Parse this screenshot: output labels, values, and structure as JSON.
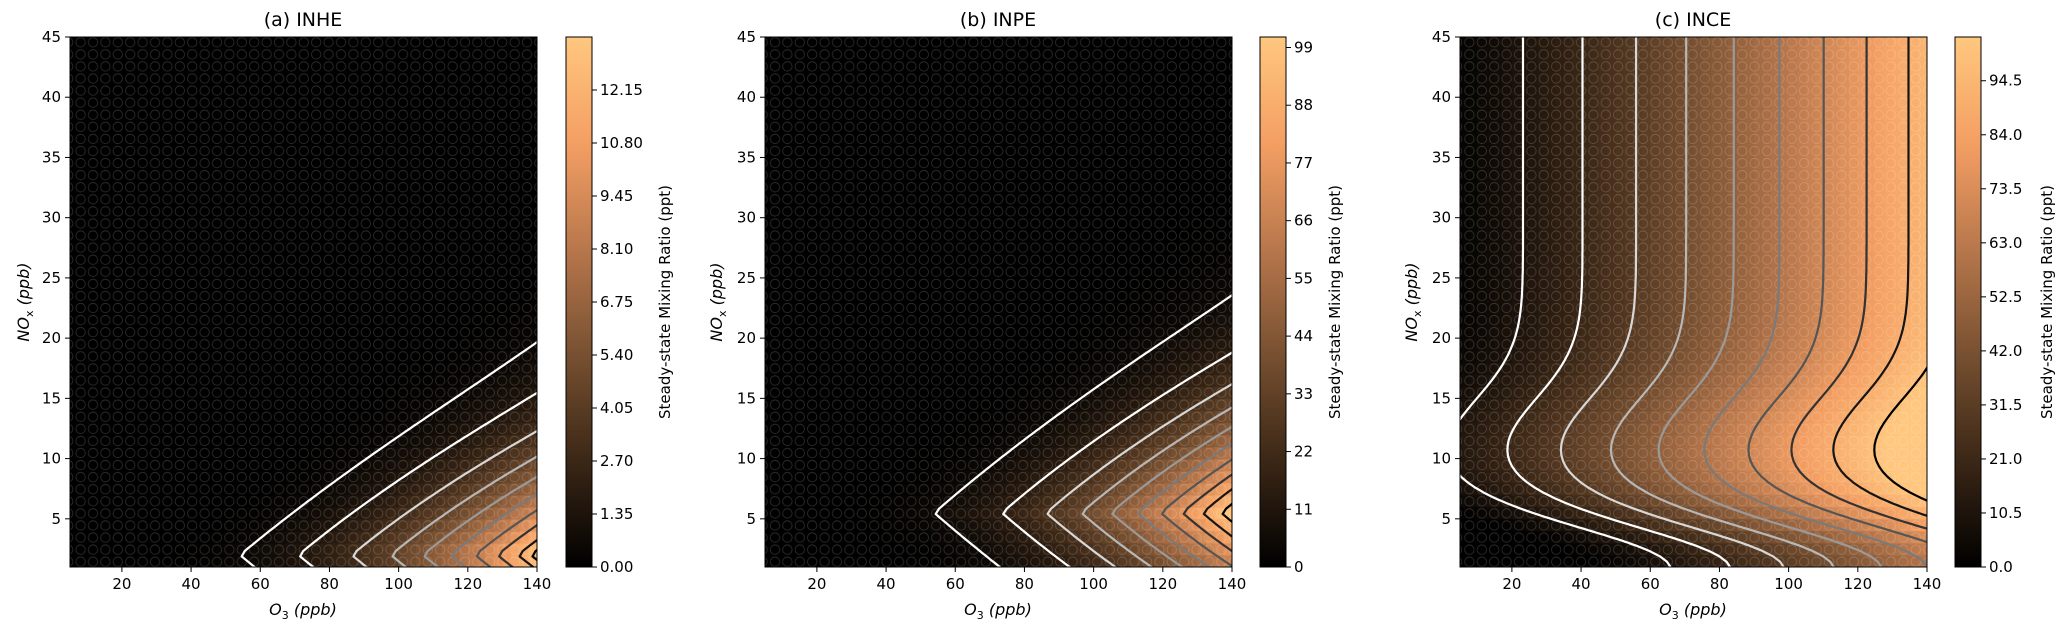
{
  "chart_data": [
    {
      "type": "heatmap",
      "title": "(a) INHE",
      "xlabel": "O3 (ppb)",
      "ylabel": "NOx (ppb)",
      "xlim": [
        5,
        140
      ],
      "ylim": [
        1,
        45
      ],
      "xticks": [
        "20",
        "40",
        "60",
        "80",
        "100",
        "120",
        "140"
      ],
      "yticks": [
        "5",
        "10",
        "15",
        "20",
        "25",
        "30",
        "35",
        "40",
        "45"
      ],
      "colorbar": {
        "label": "Steady-state Mixing Ratio (ppt)",
        "range": [
          0,
          13.5
        ],
        "ticks": [
          "0.00",
          "1.35",
          "2.70",
          "4.05",
          "5.40",
          "6.75",
          "8.10",
          "9.45",
          "10.80",
          "12.15"
        ]
      },
      "contour_levels": [
        0.5,
        1.5,
        3.0,
        4.5,
        6.0,
        7.5,
        9.0,
        10.5,
        12.0,
        13.0
      ],
      "contour_colors": [
        "#ffffff",
        "#ffffff",
        "#d8d8d8",
        "#b8b8b8",
        "#9a9a9a",
        "#7a7a7a",
        "#555555",
        "#333333",
        "#151515",
        "#000000"
      ]
    },
    {
      "type": "heatmap",
      "title": "(b) INPE",
      "xlabel": "O3 (ppb)",
      "ylabel": "NOx (ppb)",
      "xlim": [
        5,
        140
      ],
      "ylim": [
        1,
        45
      ],
      "xticks": [
        "20",
        "40",
        "60",
        "80",
        "100",
        "120",
        "140"
      ],
      "yticks": [
        "5",
        "10",
        "15",
        "20",
        "25",
        "30",
        "35",
        "40",
        "45"
      ],
      "colorbar": {
        "label": "Steady-state Mixing Ratio (ppt)",
        "range": [
          0,
          101
        ],
        "ticks": [
          "0",
          "11",
          "22",
          "33",
          "44",
          "55",
          "66",
          "77",
          "88",
          "99"
        ]
      },
      "contour_levels": [
        5,
        15,
        25,
        35,
        45,
        55,
        65,
        75,
        85,
        95
      ],
      "contour_colors": [
        "#ffffff",
        "#ffffff",
        "#d8d8d8",
        "#b8b8b8",
        "#9a9a9a",
        "#7a7a7a",
        "#555555",
        "#333333",
        "#151515",
        "#000000"
      ]
    },
    {
      "type": "heatmap",
      "title": "(c) INCE",
      "xlabel": "O3 (ppb)",
      "ylabel": "NOx (ppb)",
      "xlim": [
        5,
        140
      ],
      "ylim": [
        1,
        45
      ],
      "xticks": [
        "20",
        "40",
        "60",
        "80",
        "100",
        "120",
        "140"
      ],
      "yticks": [
        "5",
        "10",
        "15",
        "20",
        "25",
        "30",
        "35",
        "40",
        "45"
      ],
      "colorbar": {
        "label": "Steady-state Mixing Ratio (ppt)",
        "range": [
          0,
          103
        ],
        "ticks": [
          "0.0",
          "10.5",
          "21.0",
          "31.5",
          "42.0",
          "52.5",
          "63.0",
          "73.5",
          "84.0",
          "94.5"
        ]
      },
      "contour_levels": [
        10,
        20,
        30,
        40,
        50,
        60,
        70,
        80,
        90,
        100
      ],
      "contour_colors": [
        "#ffffff",
        "#ffffff",
        "#d8d8d8",
        "#b8b8b8",
        "#9a9a9a",
        "#7a7a7a",
        "#555555",
        "#333333",
        "#151515",
        "#000000"
      ]
    }
  ]
}
